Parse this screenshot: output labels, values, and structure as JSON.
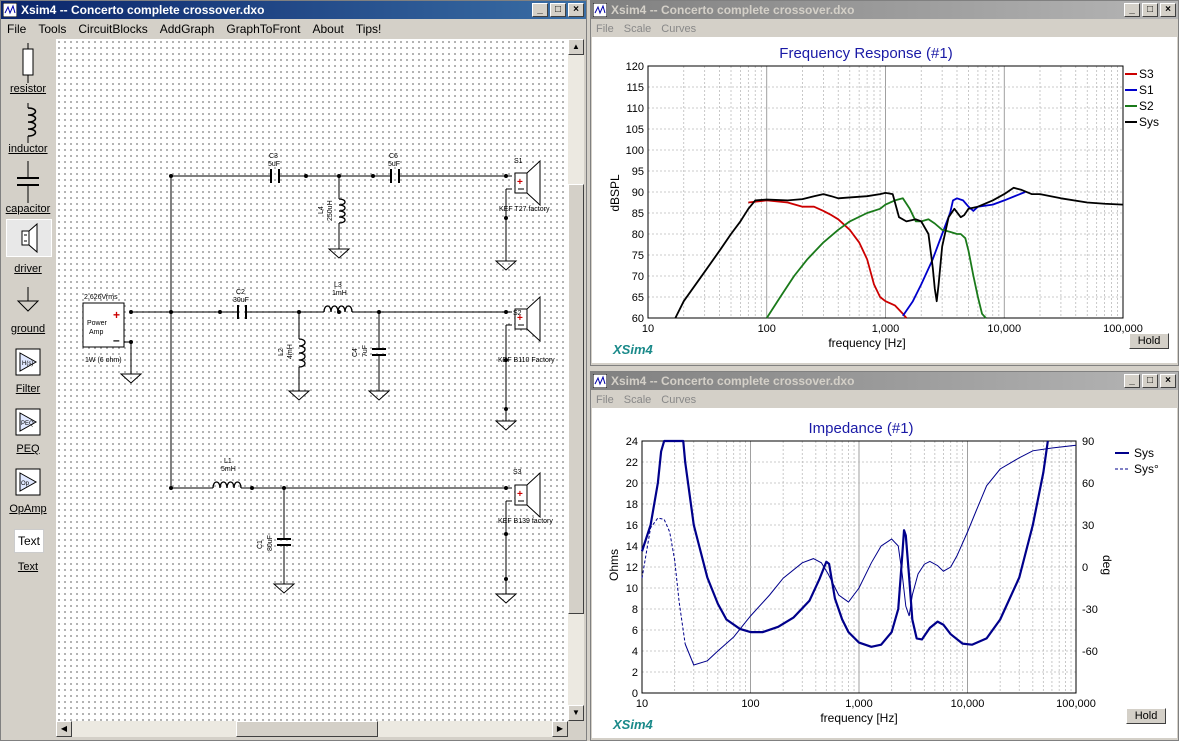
{
  "main_window": {
    "title": "Xsim4 -- Concerto complete crossover.dxo",
    "menu": [
      "File",
      "Tools",
      "CircuitBlocks",
      "AddGraph",
      "GraphToFront",
      "About",
      "Tips!"
    ],
    "tools": [
      "resistor",
      "inductor",
      "capacitor",
      "driver",
      "ground",
      "Filter",
      "PEQ",
      "OpAmp",
      "Text"
    ],
    "text_tool_icon": "Text"
  },
  "schematic": {
    "amp": {
      "top": "2.626Vrms",
      "line1": "Power",
      "line2": "Amp",
      "bottom": "1W (6 ohm)"
    },
    "c3": {
      "name": "C3",
      "value": "5uF"
    },
    "c6": {
      "name": "C6",
      "value": "5uF"
    },
    "l4": {
      "name": "L4",
      "value": "250uH"
    },
    "c2": {
      "name": "C2",
      "value": "30uF"
    },
    "l3": {
      "name": "L3",
      "value": "1mH"
    },
    "l2": {
      "name": "L2",
      "value": "4mH"
    },
    "c4": {
      "name": "C4",
      "value": "7uF"
    },
    "l1": {
      "name": "L1",
      "value": "5mH"
    },
    "c1": {
      "name": "C1",
      "value": "80uF"
    },
    "s1": {
      "name": "S1",
      "label": "KEF T27 factory"
    },
    "s2": {
      "name": "S2",
      "label": "KEF B110 Factory"
    },
    "s3": {
      "name": "S3",
      "label": "KEF B139 factory"
    }
  },
  "freq_window": {
    "title": "Xsim4 -- Concerto complete crossover.dxo",
    "menu": [
      "File",
      "Scale",
      "Curves"
    ],
    "brand": "XSim4",
    "hold": "Hold"
  },
  "imp_window": {
    "title": "Xsim4 -- Concerto complete crossover.dxo",
    "menu": [
      "File",
      "Scale",
      "Curves"
    ],
    "brand": "XSim4",
    "hold": "Hold"
  },
  "chart_data": [
    {
      "type": "line",
      "title": "Frequency Response (#1)",
      "xlabel": "frequency [Hz]",
      "ylabel": "dBSPL",
      "x_scale": "log",
      "xlim": [
        10,
        100000
      ],
      "ylim": [
        60,
        120
      ],
      "x_ticks": [
        "10",
        "100",
        "1,000",
        "10,000",
        "100,000"
      ],
      "y_ticks": [
        "60",
        "65",
        "70",
        "75",
        "80",
        "85",
        "90",
        "95",
        "100",
        "105",
        "110",
        "115",
        "120"
      ],
      "grid": true,
      "legend_position": "right",
      "series": [
        {
          "name": "S3",
          "color": "#cc0000",
          "points": [
            [
              70,
              87.5
            ],
            [
              100,
              88
            ],
            [
              150,
              87.5
            ],
            [
              200,
              86.5
            ],
            [
              250,
              86.5
            ],
            [
              300,
              85.5
            ],
            [
              350,
              84.5
            ],
            [
              400,
              83.5
            ],
            [
              500,
              81
            ],
            [
              600,
              78
            ],
            [
              700,
              74
            ],
            [
              800,
              68
            ],
            [
              900,
              65
            ],
            [
              1000,
              64
            ],
            [
              1200,
              63
            ],
            [
              1400,
              61
            ],
            [
              1500,
              60
            ]
          ]
        },
        {
          "name": "S1",
          "color": "#0000cc",
          "points": [
            [
              1400,
              60.5
            ],
            [
              1700,
              64
            ],
            [
              2000,
              68
            ],
            [
              2500,
              74
            ],
            [
              3000,
              80
            ],
            [
              3500,
              85
            ],
            [
              3700,
              88
            ],
            [
              4000,
              88.5
            ],
            [
              4500,
              88
            ],
            [
              5000,
              86.5
            ],
            [
              5500,
              85.5
            ],
            [
              6000,
              86.5
            ],
            [
              8000,
              87
            ],
            [
              10000,
              88
            ],
            [
              15000,
              90
            ]
          ]
        },
        {
          "name": "S2",
          "color": "#1a7a1a",
          "points": [
            [
              100,
              60
            ],
            [
              130,
              65
            ],
            [
              170,
              70
            ],
            [
              220,
              74
            ],
            [
              300,
              78
            ],
            [
              400,
              81
            ],
            [
              500,
              83
            ],
            [
              700,
              85
            ],
            [
              900,
              86
            ],
            [
              1000,
              87
            ],
            [
              1200,
              88
            ],
            [
              1400,
              88.5
            ],
            [
              1600,
              86
            ],
            [
              1800,
              83
            ],
            [
              2000,
              83
            ],
            [
              2300,
              83.5
            ],
            [
              2600,
              82.5
            ],
            [
              3000,
              81
            ],
            [
              3500,
              80.5
            ],
            [
              4000,
              80
            ],
            [
              4300,
              80
            ],
            [
              4700,
              79
            ],
            [
              5000,
              76
            ],
            [
              5500,
              70
            ],
            [
              6000,
              65
            ],
            [
              6500,
              61
            ],
            [
              7000,
              60
            ]
          ]
        },
        {
          "name": "Sys",
          "color": "#000000",
          "points": [
            [
              17,
              60
            ],
            [
              20,
              64
            ],
            [
              30,
              71
            ],
            [
              40,
              76
            ],
            [
              50,
              80
            ],
            [
              60,
              83
            ],
            [
              70,
              86
            ],
            [
              80,
              88
            ],
            [
              100,
              88.2
            ],
            [
              150,
              88
            ],
            [
              200,
              88.3
            ],
            [
              250,
              89
            ],
            [
              300,
              89.5
            ],
            [
              350,
              89
            ],
            [
              400,
              88.5
            ],
            [
              500,
              88.7
            ],
            [
              700,
              89
            ],
            [
              900,
              89.5
            ],
            [
              1000,
              89.8
            ],
            [
              1150,
              89.5
            ],
            [
              1300,
              84
            ],
            [
              1500,
              83
            ],
            [
              1800,
              83.5
            ],
            [
              2000,
              83
            ],
            [
              2300,
              80
            ],
            [
              2500,
              72
            ],
            [
              2600,
              67
            ],
            [
              2700,
              64
            ],
            [
              2800,
              68
            ],
            [
              3000,
              77
            ],
            [
              3400,
              84
            ],
            [
              3800,
              86
            ],
            [
              4300,
              84
            ],
            [
              4600,
              84.5
            ],
            [
              5000,
              86
            ],
            [
              6000,
              86.5
            ],
            [
              8000,
              88
            ],
            [
              10000,
              89.5
            ],
            [
              12000,
              91
            ],
            [
              14000,
              90.5
            ],
            [
              17000,
              89.5
            ],
            [
              20000,
              89.5
            ],
            [
              30000,
              88.5
            ],
            [
              50000,
              87.5
            ],
            [
              70000,
              87.2
            ],
            [
              100000,
              87
            ]
          ]
        }
      ]
    },
    {
      "type": "line",
      "title": "Impedance (#1)",
      "xlabel": "frequency [Hz]",
      "ylabel": "Ohms",
      "y2label": "deg",
      "x_scale": "log",
      "xlim": [
        10,
        100000
      ],
      "ylim": [
        0,
        24
      ],
      "y2lim": [
        -90,
        90
      ],
      "x_ticks": [
        "10",
        "100",
        "1,000",
        "10,000",
        "100,000"
      ],
      "y_ticks": [
        "0",
        "2",
        "4",
        "6",
        "8",
        "10",
        "12",
        "14",
        "16",
        "18",
        "20",
        "22",
        "24"
      ],
      "y2_ticks": [
        "90",
        "60",
        "30",
        "0",
        "-30",
        "-60"
      ],
      "grid": true,
      "legend_position": "right",
      "series": [
        {
          "name": "Sys",
          "color": "#00008b",
          "axis": "left",
          "points": [
            [
              10,
              13.5
            ],
            [
              12,
              16
            ],
            [
              14,
              20
            ],
            [
              15,
              23
            ],
            [
              16,
              24
            ],
            [
              24,
              24
            ],
            [
              25,
              22
            ],
            [
              30,
              16
            ],
            [
              40,
              11
            ],
            [
              50,
              8.5
            ],
            [
              60,
              7
            ],
            [
              80,
              6.1
            ],
            [
              100,
              5.8
            ],
            [
              130,
              5.8
            ],
            [
              180,
              6.3
            ],
            [
              250,
              7.2
            ],
            [
              350,
              8.8
            ],
            [
              430,
              10.8
            ],
            [
              500,
              12.5
            ],
            [
              530,
              12.3
            ],
            [
              600,
              9
            ],
            [
              700,
              7
            ],
            [
              800,
              5.8
            ],
            [
              1000,
              4.8
            ],
            [
              1300,
              4.4
            ],
            [
              1600,
              4.6
            ],
            [
              2000,
              5.8
            ],
            [
              2300,
              8
            ],
            [
              2500,
              13
            ],
            [
              2600,
              15.5
            ],
            [
              2700,
              15
            ],
            [
              2900,
              11
            ],
            [
              3100,
              7
            ],
            [
              3400,
              5.2
            ],
            [
              3800,
              5.1
            ],
            [
              4500,
              6.2
            ],
            [
              5300,
              6.8
            ],
            [
              6000,
              6.5
            ],
            [
              7000,
              5.6
            ],
            [
              9000,
              4.7
            ],
            [
              11000,
              4.6
            ],
            [
              15000,
              5.2
            ],
            [
              20000,
              7
            ],
            [
              30000,
              11
            ],
            [
              40000,
              16
            ],
            [
              50000,
              21
            ],
            [
              55000,
              24
            ]
          ]
        },
        {
          "name": "Sys°",
          "color": "#00008b",
          "axis": "right",
          "dashed_below": 25,
          "points": [
            [
              10,
              -8
            ],
            [
              12,
              28
            ],
            [
              14,
              35
            ],
            [
              16,
              34
            ],
            [
              18,
              25
            ],
            [
              20,
              5
            ],
            [
              22,
              -25
            ],
            [
              25,
              -55
            ],
            [
              30,
              -70
            ],
            [
              40,
              -67
            ],
            [
              50,
              -60
            ],
            [
              70,
              -50
            ],
            [
              100,
              -35
            ],
            [
              150,
              -20
            ],
            [
              200,
              -8
            ],
            [
              300,
              3
            ],
            [
              380,
              6
            ],
            [
              450,
              3
            ],
            [
              520,
              -5
            ],
            [
              650,
              -20
            ],
            [
              800,
              -25
            ],
            [
              1000,
              -15
            ],
            [
              1300,
              3
            ],
            [
              1600,
              15
            ],
            [
              2000,
              20
            ],
            [
              2300,
              15
            ],
            [
              2500,
              -5
            ],
            [
              2700,
              -28
            ],
            [
              2900,
              -35
            ],
            [
              3100,
              -20
            ],
            [
              3500,
              -5
            ],
            [
              4000,
              2
            ],
            [
              4500,
              4
            ],
            [
              5300,
              1
            ],
            [
              6000,
              -3
            ],
            [
              7000,
              0
            ],
            [
              8000,
              8
            ],
            [
              10000,
              25
            ],
            [
              12000,
              40
            ],
            [
              15000,
              58
            ],
            [
              20000,
              70
            ],
            [
              30000,
              78
            ],
            [
              40000,
              83
            ],
            [
              60000,
              85
            ],
            [
              100000,
              87
            ]
          ]
        }
      ]
    }
  ]
}
